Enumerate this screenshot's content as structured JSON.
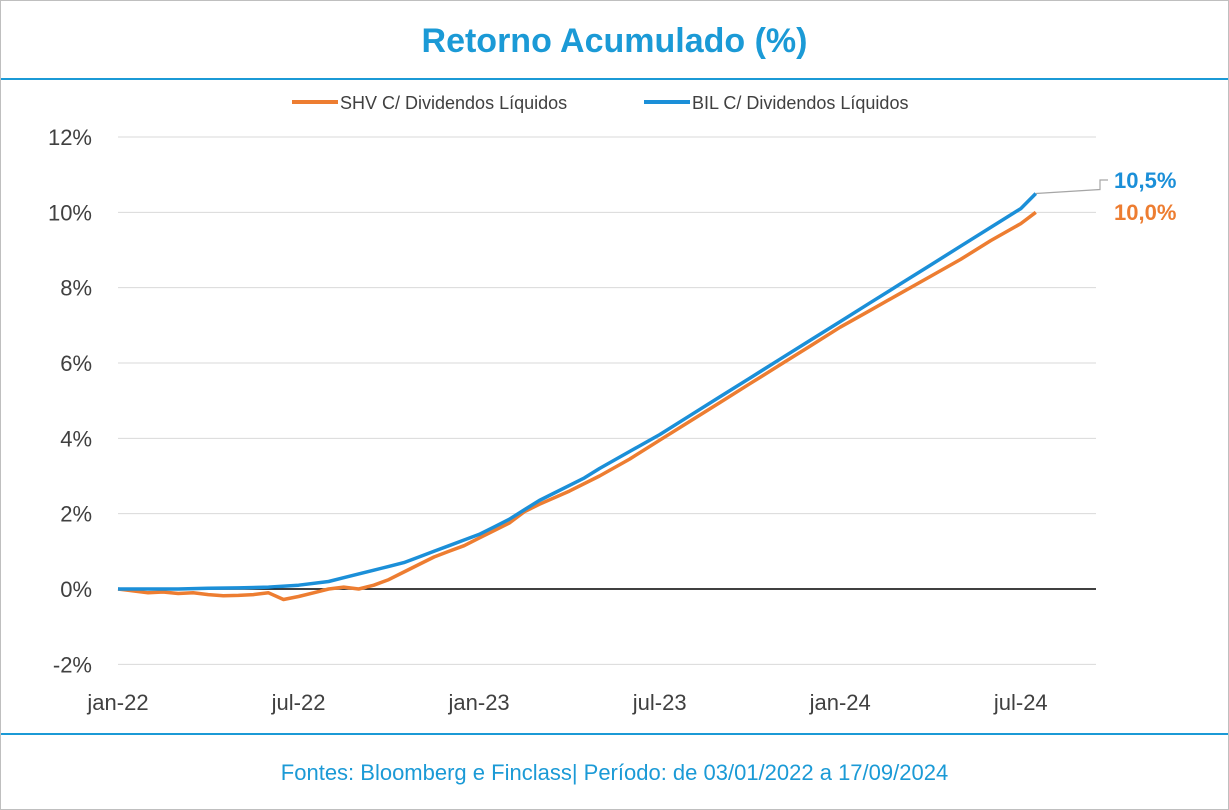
{
  "chart_data": {
    "type": "line",
    "title": "Retorno Acumulado (%)",
    "xlabel": "",
    "ylabel": "",
    "x_tick_labels": [
      "jan-22",
      "jul-22",
      "jan-23",
      "jul-23",
      "jan-24",
      "jul-24"
    ],
    "y_tick_labels": [
      "12%",
      "10%",
      "8%",
      "6%",
      "4%",
      "2%",
      "0%",
      "-2%"
    ],
    "ylim": [
      -2,
      12
    ],
    "grid": true,
    "legend_position": "top",
    "x_unit": "months since jan-22",
    "series": [
      {
        "name": "SHV C/ Dividendos Líquidos",
        "color": "#ed7d31",
        "end_label": "10,0%",
        "points": [
          [
            0,
            0.0
          ],
          [
            0.5,
            -0.05
          ],
          [
            1,
            -0.1
          ],
          [
            1.5,
            -0.08
          ],
          [
            2,
            -0.12
          ],
          [
            2.5,
            -0.1
          ],
          [
            3,
            -0.15
          ],
          [
            3.5,
            -0.18
          ],
          [
            4,
            -0.17
          ],
          [
            4.5,
            -0.15
          ],
          [
            5,
            -0.1
          ],
          [
            5.5,
            -0.28
          ],
          [
            6,
            -0.2
          ],
          [
            6.5,
            -0.1
          ],
          [
            7,
            0.0
          ],
          [
            7.5,
            0.05
          ],
          [
            8,
            0.0
          ],
          [
            8.5,
            0.1
          ],
          [
            9,
            0.25
          ],
          [
            9.5,
            0.45
          ],
          [
            10,
            0.65
          ],
          [
            10.5,
            0.85
          ],
          [
            11,
            1.0
          ],
          [
            11.5,
            1.15
          ],
          [
            12,
            1.35
          ],
          [
            12.5,
            1.55
          ],
          [
            13,
            1.75
          ],
          [
            13.5,
            2.05
          ],
          [
            14,
            2.25
          ],
          [
            15,
            2.6
          ],
          [
            16,
            3.0
          ],
          [
            17,
            3.45
          ],
          [
            18,
            3.95
          ],
          [
            19,
            4.45
          ],
          [
            20,
            4.95
          ],
          [
            21,
            5.45
          ],
          [
            22,
            5.95
          ],
          [
            23,
            6.45
          ],
          [
            24,
            6.95
          ],
          [
            25,
            7.4
          ],
          [
            26,
            7.85
          ],
          [
            27,
            8.3
          ],
          [
            28,
            8.75
          ],
          [
            29,
            9.25
          ],
          [
            30,
            9.7
          ],
          [
            30.5,
            10.0
          ]
        ]
      },
      {
        "name": "BIL  C/ Dividendos Líquidos",
        "color": "#1b8fd8",
        "end_label": "10,5%",
        "points": [
          [
            0,
            0.0
          ],
          [
            1,
            0.0
          ],
          [
            2,
            0.0
          ],
          [
            3,
            0.02
          ],
          [
            4,
            0.03
          ],
          [
            5,
            0.05
          ],
          [
            6,
            0.1
          ],
          [
            7,
            0.2
          ],
          [
            7.5,
            0.3
          ],
          [
            8,
            0.4
          ],
          [
            8.5,
            0.5
          ],
          [
            9,
            0.6
          ],
          [
            9.5,
            0.7
          ],
          [
            10,
            0.85
          ],
          [
            10.5,
            1.0
          ],
          [
            11,
            1.15
          ],
          [
            11.5,
            1.3
          ],
          [
            12,
            1.45
          ],
          [
            12.5,
            1.65
          ],
          [
            13,
            1.85
          ],
          [
            13.5,
            2.1
          ],
          [
            14,
            2.35
          ],
          [
            14.5,
            2.55
          ],
          [
            15,
            2.75
          ],
          [
            15.5,
            2.95
          ],
          [
            16,
            3.2
          ],
          [
            17,
            3.65
          ],
          [
            18,
            4.1
          ],
          [
            19,
            4.6
          ],
          [
            20,
            5.1
          ],
          [
            21,
            5.6
          ],
          [
            22,
            6.1
          ],
          [
            23,
            6.6
          ],
          [
            24,
            7.1
          ],
          [
            25,
            7.6
          ],
          [
            26,
            8.1
          ],
          [
            27,
            8.6
          ],
          [
            28,
            9.1
          ],
          [
            29,
            9.6
          ],
          [
            30,
            10.1
          ],
          [
            30.5,
            10.5
          ]
        ]
      }
    ]
  },
  "footer": "Fontes: Bloomberg e Finclass| Período: de 03/01/2022 a 17/09/2024"
}
